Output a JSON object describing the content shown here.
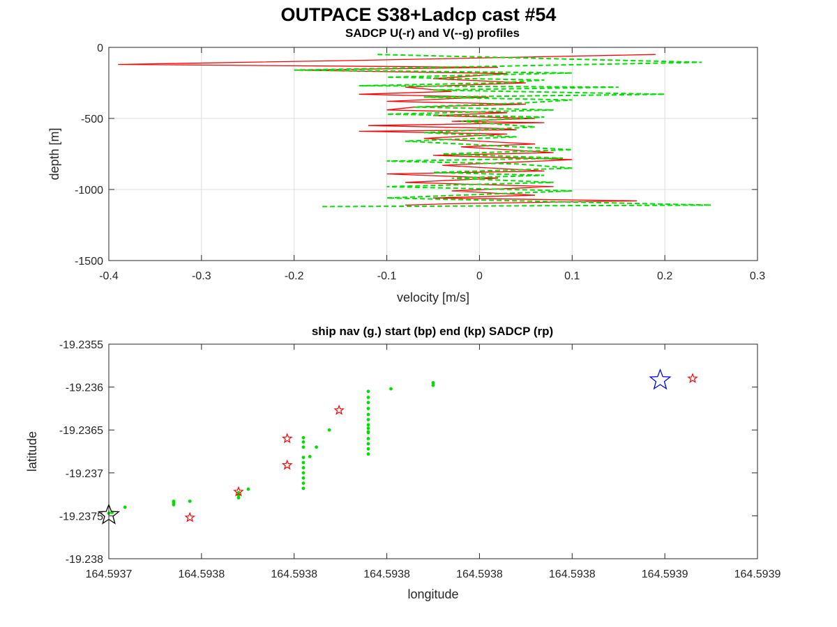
{
  "figure": {
    "title": "OUTPACE S38+Ladcp cast #54"
  },
  "chart_data": [
    {
      "type": "line",
      "title": "SADCP U(-r) and V(--g) profiles",
      "xlabel": "velocity [m/s]",
      "ylabel": "depth [m]",
      "xlim": [
        -0.4,
        0.3
      ],
      "ylim": [
        -1500,
        0
      ],
      "xticks": [
        "-0.4",
        "-0.3",
        "-0.2",
        "-0.1",
        "0",
        "0.1",
        "0.2",
        "0.3"
      ],
      "yticks": [
        "0",
        "-500",
        "-1000",
        "-1500"
      ],
      "grid": true,
      "series": [
        {
          "style": "solid",
          "color": "#ff0000",
          "x": [
            0.19,
            -0.12,
            -0.39,
            0.02,
            -0.2,
            0.03,
            -0.05,
            0.05,
            -0.08,
            -0.03,
            -0.13,
            0.01,
            -0.1,
            0.05,
            -0.07,
            -0.1,
            0.03,
            -0.05,
            0.06,
            -0.03,
            0.07,
            -0.12,
            0.02,
            0.04,
            -0.13,
            0.03,
            -0.06,
            0.06,
            -0.02,
            0.08,
            -0.05,
            0.1,
            -0.04,
            0.07,
            -0.1,
            0.02,
            -0.08,
            0.08,
            -0.03,
            0.06,
            -0.05,
            0.17,
            -0.03,
            -0.08
          ],
          "y": [
            -50,
            -90,
            -120,
            -140,
            -160,
            -185,
            -220,
            -250,
            -280,
            -310,
            -330,
            -350,
            -380,
            -400,
            -420,
            -440,
            -460,
            -480,
            -500,
            -520,
            -530,
            -550,
            -570,
            -580,
            -590,
            -610,
            -640,
            -680,
            -700,
            -740,
            -760,
            -790,
            -830,
            -870,
            -890,
            -920,
            -950,
            -980,
            -1010,
            -1040,
            -1060,
            -1080,
            -1100,
            -1110
          ]
        },
        {
          "style": "dashed",
          "color": "#00e000",
          "x": [
            -0.11,
            0.24,
            -0.2,
            0.1,
            -0.1,
            0.07,
            0.02,
            -0.13,
            0.15,
            -0.05,
            0.2,
            -0.06,
            0.1,
            0.05,
            -0.07,
            0.08,
            -0.1,
            0.07,
            -0.02,
            0.06,
            -0.06,
            0.04,
            -0.08,
            0.04,
            0.1,
            -0.04,
            0.09,
            -0.1,
            0.04,
            0.1,
            -0.05,
            0.07,
            -0.03,
            0.08,
            -0.1,
            0.1,
            -0.1,
            0.25,
            -0.17
          ],
          "y": [
            -50,
            -105,
            -160,
            -180,
            -210,
            -230,
            -250,
            -270,
            -280,
            -300,
            -330,
            -350,
            -370,
            -390,
            -420,
            -440,
            -470,
            -490,
            -520,
            -560,
            -600,
            -630,
            -660,
            -700,
            -720,
            -750,
            -780,
            -800,
            -820,
            -850,
            -880,
            -900,
            -920,
            -950,
            -980,
            -1010,
            -1060,
            -1110,
            -1120
          ]
        }
      ]
    },
    {
      "type": "scatter",
      "title": "ship nav (g.) start (bp) end (kp) SADCP (rp)",
      "xlabel": "longitude",
      "ylabel": "latitude",
      "xlim": [
        164.5937,
        164.5939
      ],
      "ylim": [
        -19.238,
        -19.2355
      ],
      "xticks": [
        "164.5937",
        "164.5938",
        "164.5938",
        "164.5938",
        "164.5938",
        "164.5938",
        "164.5939",
        "164.5939"
      ],
      "yticks": [
        "-19.2355",
        "-19.236",
        "-19.2365",
        "-19.237",
        "-19.2375",
        "-19.238"
      ],
      "grid": false,
      "ship_nav": {
        "color": "#00e000",
        "x": [
          164.5937,
          164.593701,
          164.593705,
          164.59372,
          164.59372,
          164.59372,
          164.593725,
          164.59374,
          164.59374,
          164.59374,
          164.593743,
          164.59376,
          164.59376,
          164.59376,
          164.59376,
          164.59376,
          164.59376,
          164.59376,
          164.59376,
          164.59376,
          164.59376,
          164.593762,
          164.593764,
          164.593768,
          164.59378,
          164.59378,
          164.59378,
          164.59378,
          164.59378,
          164.59378,
          164.59378,
          164.59378,
          164.59378,
          164.59378,
          164.59378,
          164.59378,
          164.59378,
          164.59378,
          164.593787,
          164.5938,
          164.5938
        ],
        "y": [
          -19.23747,
          -19.23746,
          -19.2374,
          -19.23733,
          -19.23735,
          -19.23737,
          -19.23733,
          -19.23723,
          -19.23726,
          -19.23729,
          -19.23719,
          -19.23659,
          -19.23664,
          -19.2367,
          -19.23682,
          -19.23688,
          -19.23694,
          -19.237,
          -19.23706,
          -19.23712,
          -19.23718,
          -19.23681,
          -19.2367,
          -19.2365,
          -19.23605,
          -19.23612,
          -19.23618,
          -19.23625,
          -19.23632,
          -19.23638,
          -19.23644,
          -19.23648,
          -19.23652,
          -19.2366,
          -19.23666,
          -19.23672,
          -19.23678,
          -19.23653,
          -19.23602,
          -19.23595,
          -19.23598
        ]
      },
      "start": {
        "color": "#0000ff",
        "x": 164.59387,
        "y": -19.23592
      },
      "end": {
        "color": "#000000",
        "x": 164.5937,
        "y": -19.23749
      },
      "sadcp": {
        "color": "#ff0000",
        "x": [
          164.593725,
          164.59374,
          164.593755,
          164.593755,
          164.593771,
          164.59388
        ],
        "y": [
          -19.23752,
          -19.23722,
          -19.2366,
          -19.23691,
          -19.23627,
          -19.2359
        ]
      }
    }
  ]
}
